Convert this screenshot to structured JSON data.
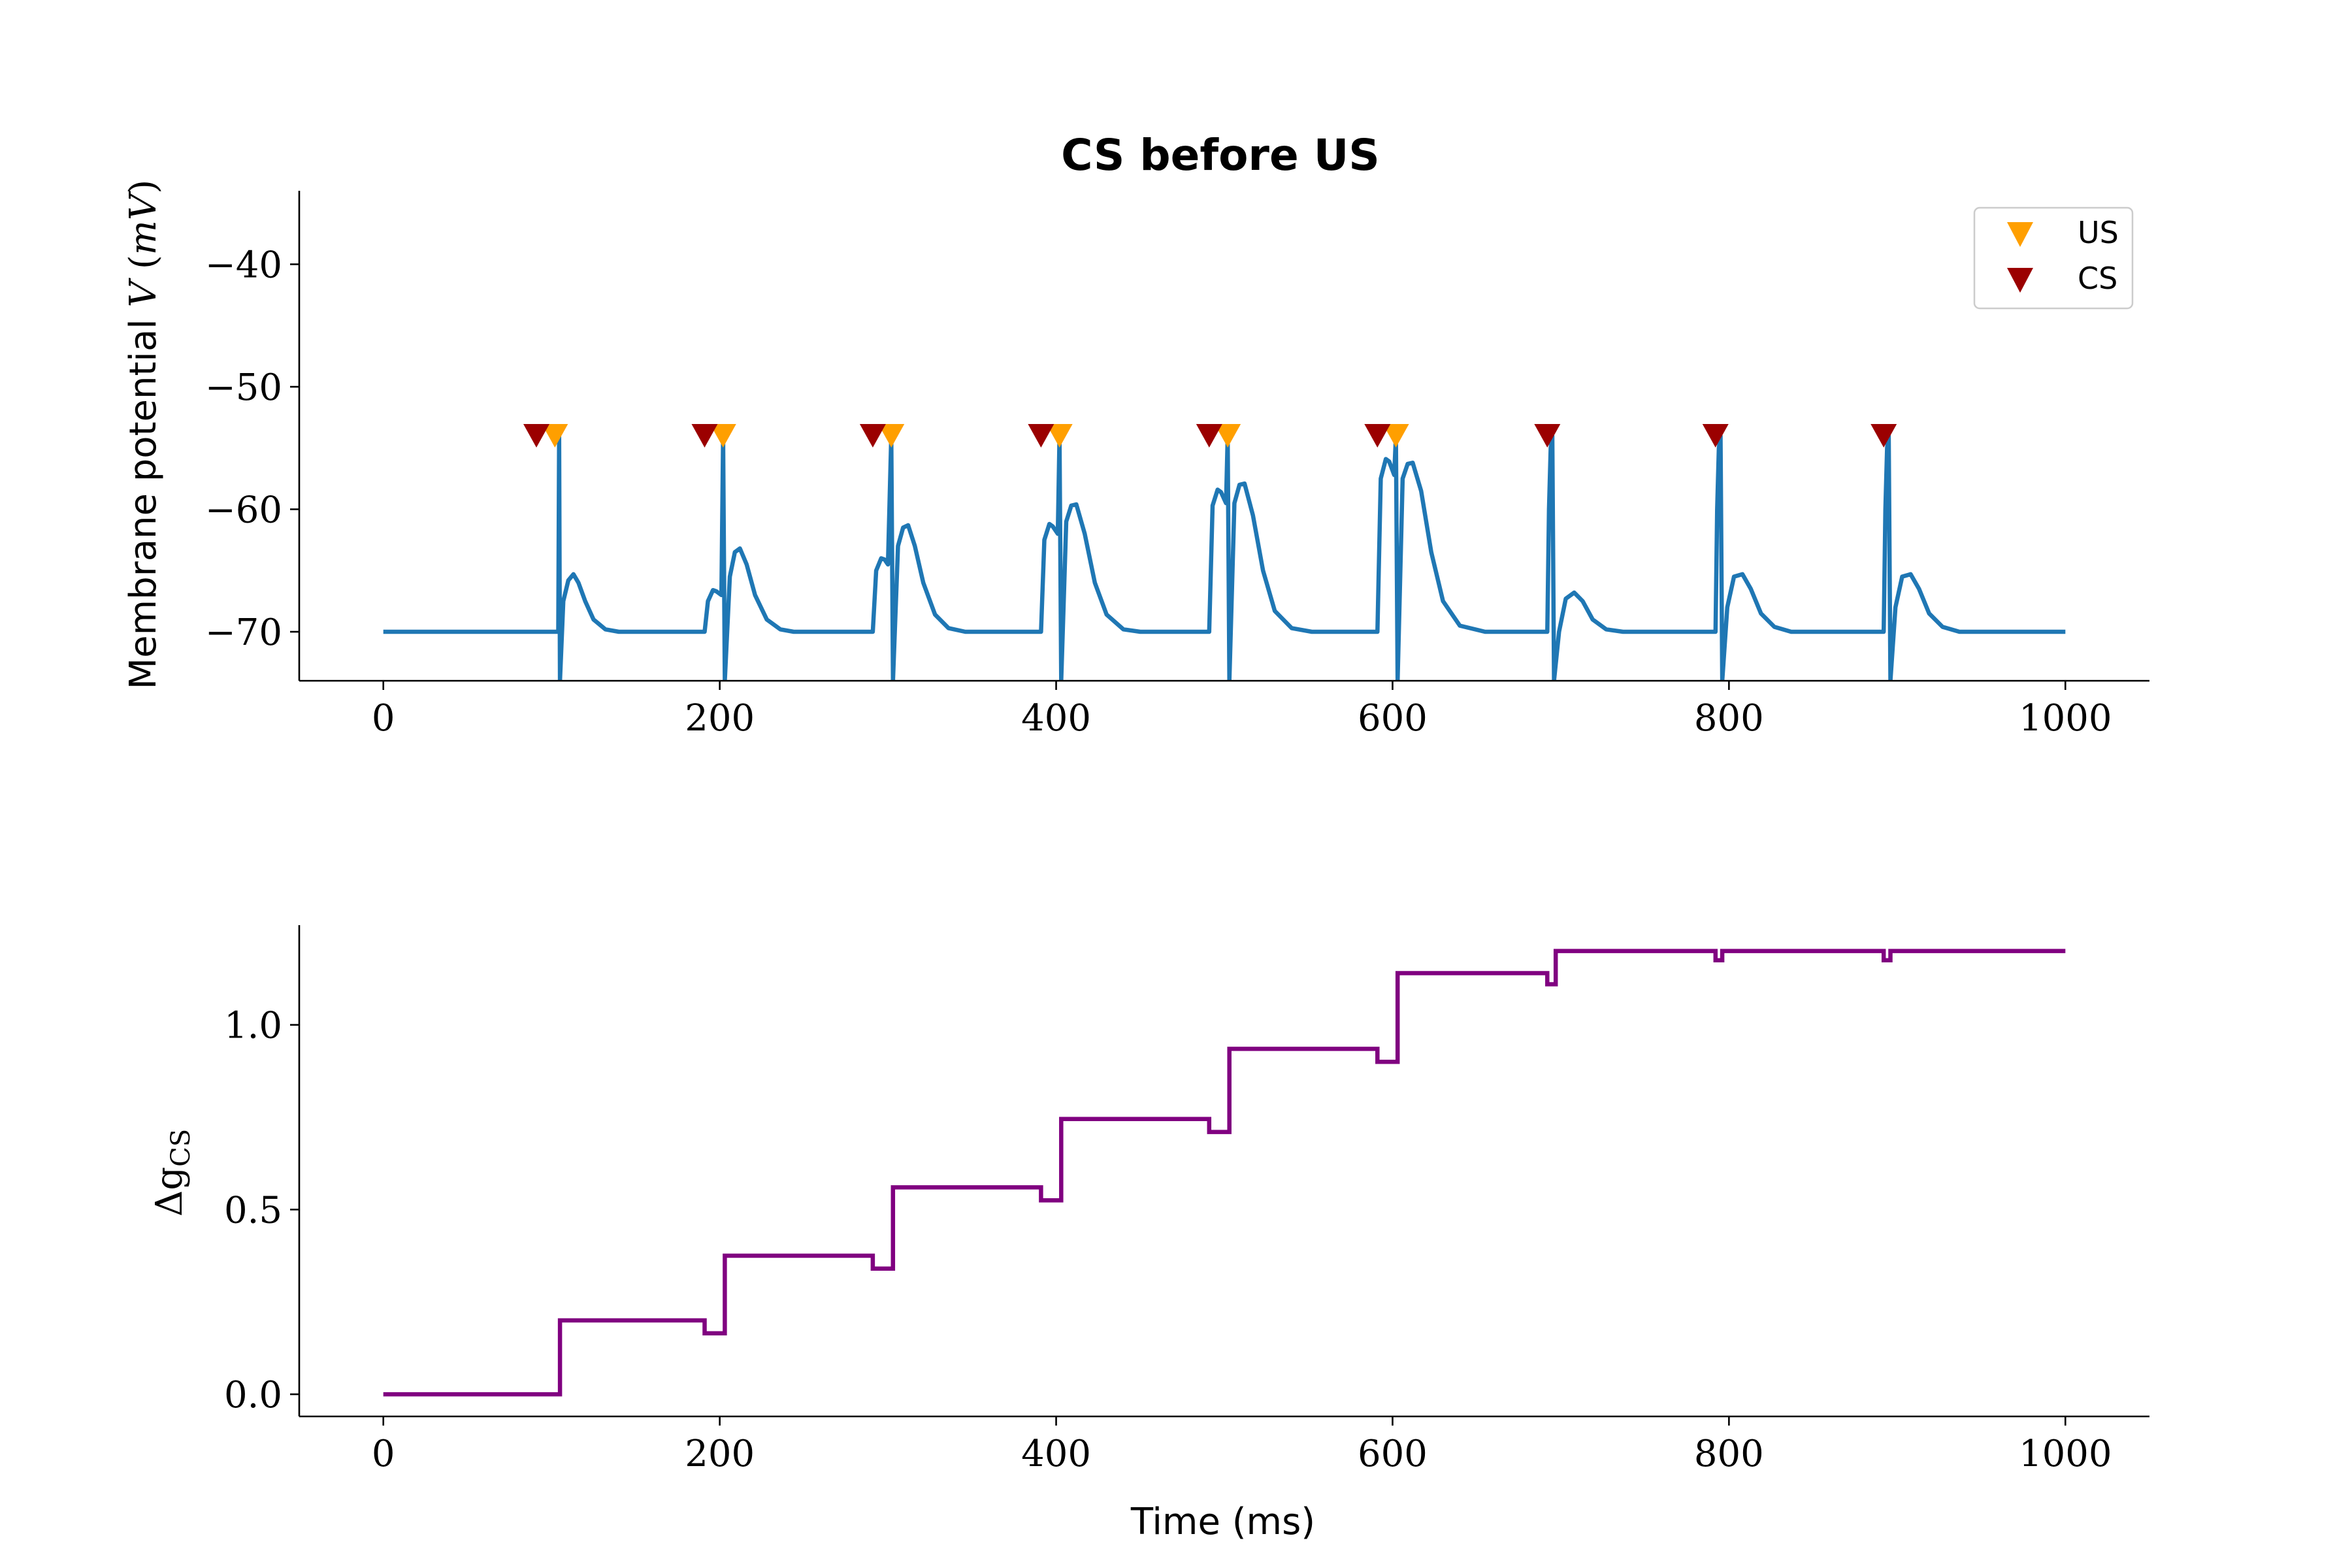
{
  "chart_data": [
    {
      "type": "line",
      "title": "CS before US",
      "xlabel": "",
      "ylabel": "Membrane potential V (mV)",
      "xlim": [
        -50,
        1050
      ],
      "ylim": [
        -74,
        -34
      ],
      "xticks": [
        0,
        200,
        400,
        600,
        800,
        1000
      ],
      "yticks": [
        -70,
        -60,
        -50,
        -40
      ],
      "xtick_labels": [
        "0",
        "200",
        "400",
        "600",
        "800",
        "1000"
      ],
      "ytick_labels": [
        "−70",
        "−60",
        "−50",
        "−40"
      ],
      "grid": false,
      "legend": {
        "placement": "top-right",
        "entries": [
          {
            "name": "US",
            "marker": "triangle-down",
            "color": "#ff9f00"
          },
          {
            "name": "CS",
            "marker": "triangle-down",
            "color": "#9b0000"
          }
        ]
      },
      "series": [
        {
          "name": "",
          "color": "#1f77b4",
          "points": [
            [
              0,
              -70
            ],
            [
              104,
              -70
            ],
            [
              104.5,
              -54
            ],
            [
              105,
              -74
            ],
            [
              107,
              -67.5
            ],
            [
              110,
              -65.8
            ],
            [
              113,
              -65.3
            ],
            [
              116,
              -66
            ],
            [
              120,
              -67.5
            ],
            [
              125,
              -69
            ],
            [
              132,
              -69.8
            ],
            [
              140,
              -70
            ],
            [
              191,
              -70
            ],
            [
              193,
              -67.5
            ],
            [
              196,
              -66.6
            ],
            [
              198,
              -66.7
            ],
            [
              201,
              -67
            ],
            [
              202,
              -54
            ],
            [
              203,
              -74
            ],
            [
              206,
              -65.5
            ],
            [
              209,
              -63.5
            ],
            [
              212,
              -63.2
            ],
            [
              216,
              -64.5
            ],
            [
              221,
              -67
            ],
            [
              228,
              -69
            ],
            [
              236,
              -69.8
            ],
            [
              244,
              -70
            ],
            [
              291,
              -70
            ],
            [
              293,
              -65
            ],
            [
              296,
              -64
            ],
            [
              298,
              -64.1
            ],
            [
              300,
              -64.5
            ],
            [
              302,
              -54
            ],
            [
              303,
              -74
            ],
            [
              306,
              -63
            ],
            [
              309,
              -61.5
            ],
            [
              312,
              -61.3
            ],
            [
              316,
              -63
            ],
            [
              321,
              -66
            ],
            [
              328,
              -68.6
            ],
            [
              336,
              -69.7
            ],
            [
              346,
              -70
            ],
            [
              391,
              -70
            ],
            [
              393,
              -62.5
            ],
            [
              396,
              -61.2
            ],
            [
              398,
              -61.4
            ],
            [
              401,
              -62
            ],
            [
              402,
              -54
            ],
            [
              403,
              -74
            ],
            [
              406,
              -61
            ],
            [
              409,
              -59.7
            ],
            [
              412,
              -59.6
            ],
            [
              417,
              -62
            ],
            [
              423,
              -66
            ],
            [
              430,
              -68.6
            ],
            [
              440,
              -69.8
            ],
            [
              450,
              -70
            ],
            [
              491,
              -70
            ],
            [
              493,
              -59.7
            ],
            [
              496,
              -58.4
            ],
            [
              498,
              -58.6
            ],
            [
              501,
              -59.5
            ],
            [
              502,
              -54
            ],
            [
              503,
              -74
            ],
            [
              506,
              -59.5
            ],
            [
              509,
              -58
            ],
            [
              512,
              -57.9
            ],
            [
              517,
              -60.5
            ],
            [
              523,
              -65
            ],
            [
              530,
              -68.3
            ],
            [
              540,
              -69.7
            ],
            [
              552,
              -70
            ],
            [
              591,
              -70
            ],
            [
              593,
              -57.5
            ],
            [
              596,
              -55.9
            ],
            [
              598,
              -56.1
            ],
            [
              601,
              -57.2
            ],
            [
              602,
              -54
            ],
            [
              603,
              -74
            ],
            [
              606,
              -57.5
            ],
            [
              609,
              -56.3
            ],
            [
              612,
              -56.2
            ],
            [
              617,
              -58.5
            ],
            [
              623,
              -63.5
            ],
            [
              630,
              -67.5
            ],
            [
              640,
              -69.5
            ],
            [
              655,
              -70
            ],
            [
              692,
              -70
            ],
            [
              693,
              -60
            ],
            [
              694,
              -55
            ],
            [
              695,
              -54
            ],
            [
              696,
              -74
            ],
            [
              699,
              -70
            ],
            [
              703,
              -67.3
            ],
            [
              708,
              -66.8
            ],
            [
              713,
              -67.5
            ],
            [
              719,
              -69
            ],
            [
              727,
              -69.8
            ],
            [
              737,
              -70
            ],
            [
              792,
              -70
            ],
            [
              793,
              -60
            ],
            [
              794,
              -55
            ],
            [
              795,
              -54
            ],
            [
              796,
              -74
            ],
            [
              799,
              -68
            ],
            [
              803,
              -65.5
            ],
            [
              808,
              -65.3
            ],
            [
              813,
              -66.5
            ],
            [
              819,
              -68.5
            ],
            [
              827,
              -69.6
            ],
            [
              837,
              -70
            ],
            [
              892,
              -70
            ],
            [
              893,
              -60
            ],
            [
              894,
              -55
            ],
            [
              895,
              -54
            ],
            [
              896,
              -74
            ],
            [
              899,
              -68
            ],
            [
              903,
              -65.5
            ],
            [
              908,
              -65.3
            ],
            [
              913,
              -66.5
            ],
            [
              919,
              -68.5
            ],
            [
              927,
              -69.6
            ],
            [
              937,
              -70
            ],
            [
              1000,
              -70
            ]
          ]
        },
        {
          "name": "US",
          "marker": "triangle-down",
          "color": "#ff9f00",
          "x": [
            102,
            202,
            302,
            402,
            502,
            602
          ],
          "y": [
            -54,
            -54,
            -54,
            -54,
            -54,
            -54
          ]
        },
        {
          "name": "CS",
          "marker": "triangle-down",
          "color": "#9b0000",
          "x": [
            91,
            191,
            291,
            391,
            491,
            591,
            692,
            792,
            892
          ],
          "y": [
            -54,
            -54,
            -54,
            -54,
            -54,
            -54,
            -54,
            -54,
            -54
          ]
        }
      ]
    },
    {
      "type": "line",
      "title": "",
      "xlabel": "Time (ms)",
      "ylabel": "Δg_CS",
      "ylabel_main": "Δg",
      "ylabel_sub": "CS",
      "xlim": [
        -50,
        1050
      ],
      "ylim": [
        -0.06,
        1.27
      ],
      "xticks": [
        0,
        200,
        400,
        600,
        800,
        1000
      ],
      "yticks": [
        0.0,
        0.5,
        1.0
      ],
      "xtick_labels": [
        "0",
        "200",
        "400",
        "600",
        "800",
        "1000"
      ],
      "ytick_labels": [
        "0.0",
        "0.5",
        "1.0"
      ],
      "grid": false,
      "series": [
        {
          "name": "",
          "color": "#800080",
          "step": "post",
          "x": [
            0,
            105,
            191,
            203,
            291,
            303,
            391,
            403,
            491,
            503,
            591,
            603,
            692,
            697,
            792,
            796,
            892,
            896,
            1000
          ],
          "y": [
            0.0,
            0.2,
            0.165,
            0.375,
            0.34,
            0.56,
            0.525,
            0.745,
            0.71,
            0.935,
            0.9,
            1.14,
            1.11,
            1.2,
            1.175,
            1.2,
            1.175,
            1.2,
            1.2
          ]
        }
      ]
    }
  ]
}
